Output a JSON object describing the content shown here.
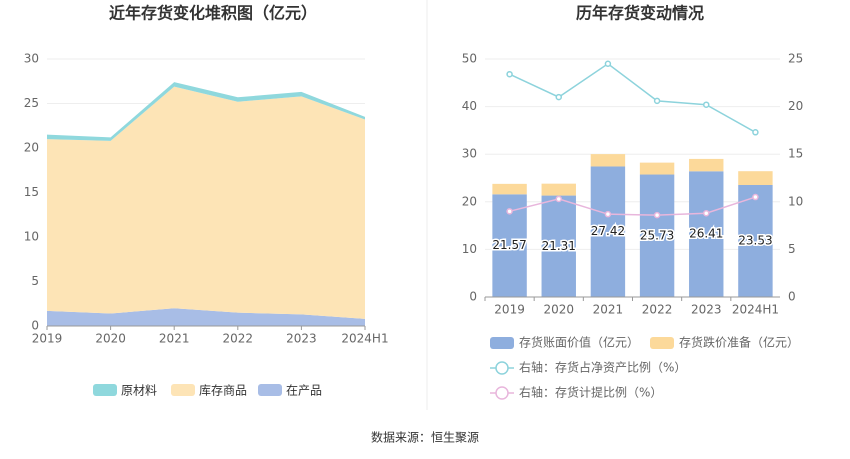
{
  "chart_data": [
    {
      "type": "stacked_area",
      "title": "近年存货变化堆积图（亿元）",
      "categories": [
        "2019",
        "2020",
        "2021",
        "2022",
        "2023",
        "2024H1"
      ],
      "ylim": [
        0,
        30
      ],
      "yticks": [
        0,
        5,
        10,
        15,
        20,
        25,
        30
      ],
      "grid": true,
      "legend": "bottom",
      "series": [
        {
          "name": "原材料",
          "color": "#8fd8dd",
          "values": [
            0.5,
            0.4,
            0.5,
            0.5,
            0.5,
            0.3
          ]
        },
        {
          "name": "库存商品",
          "color": "#fde4b6",
          "values": [
            19.3,
            19.4,
            24.9,
            23.7,
            24.5,
            22.4
          ]
        },
        {
          "name": "在产品",
          "color": "#a8bde6",
          "values": [
            1.7,
            1.4,
            2.0,
            1.5,
            1.3,
            0.8
          ]
        }
      ]
    },
    {
      "type": "bar_line",
      "title": "历年存货变动情况",
      "categories": [
        "2019",
        "2020",
        "2021",
        "2022",
        "2023",
        "2024H1"
      ],
      "ylim": [
        0,
        50
      ],
      "yticks": [
        0,
        10,
        20,
        30,
        40,
        50
      ],
      "y2lim": [
        0,
        25
      ],
      "y2ticks": [
        0,
        5,
        10,
        15,
        20,
        25
      ],
      "grid": true,
      "legend": "bottom",
      "series": [
        {
          "name": "存货账面价值（亿元）",
          "color": "#8eaede",
          "values": [
            21.57,
            21.31,
            27.42,
            25.73,
            26.41,
            23.53
          ]
        },
        {
          "name": "存货跌价准备（亿元）",
          "color": "#fcd99a",
          "values": [
            2.2,
            2.5,
            2.6,
            2.5,
            2.6,
            2.9
          ]
        },
        {
          "name": "右轴：存货占净资产比例（%）",
          "color": "#8dd3dc",
          "axis": "y2",
          "values": [
            23.4,
            21.0,
            24.5,
            20.6,
            20.2,
            17.3
          ]
        },
        {
          "name": "右轴：存货计提比例（%）",
          "color": "#e8b6dc",
          "axis": "y2",
          "values": [
            9.0,
            10.3,
            8.7,
            8.6,
            8.8,
            10.5
          ]
        }
      ]
    }
  ],
  "source": "数据来源：恒生聚源"
}
